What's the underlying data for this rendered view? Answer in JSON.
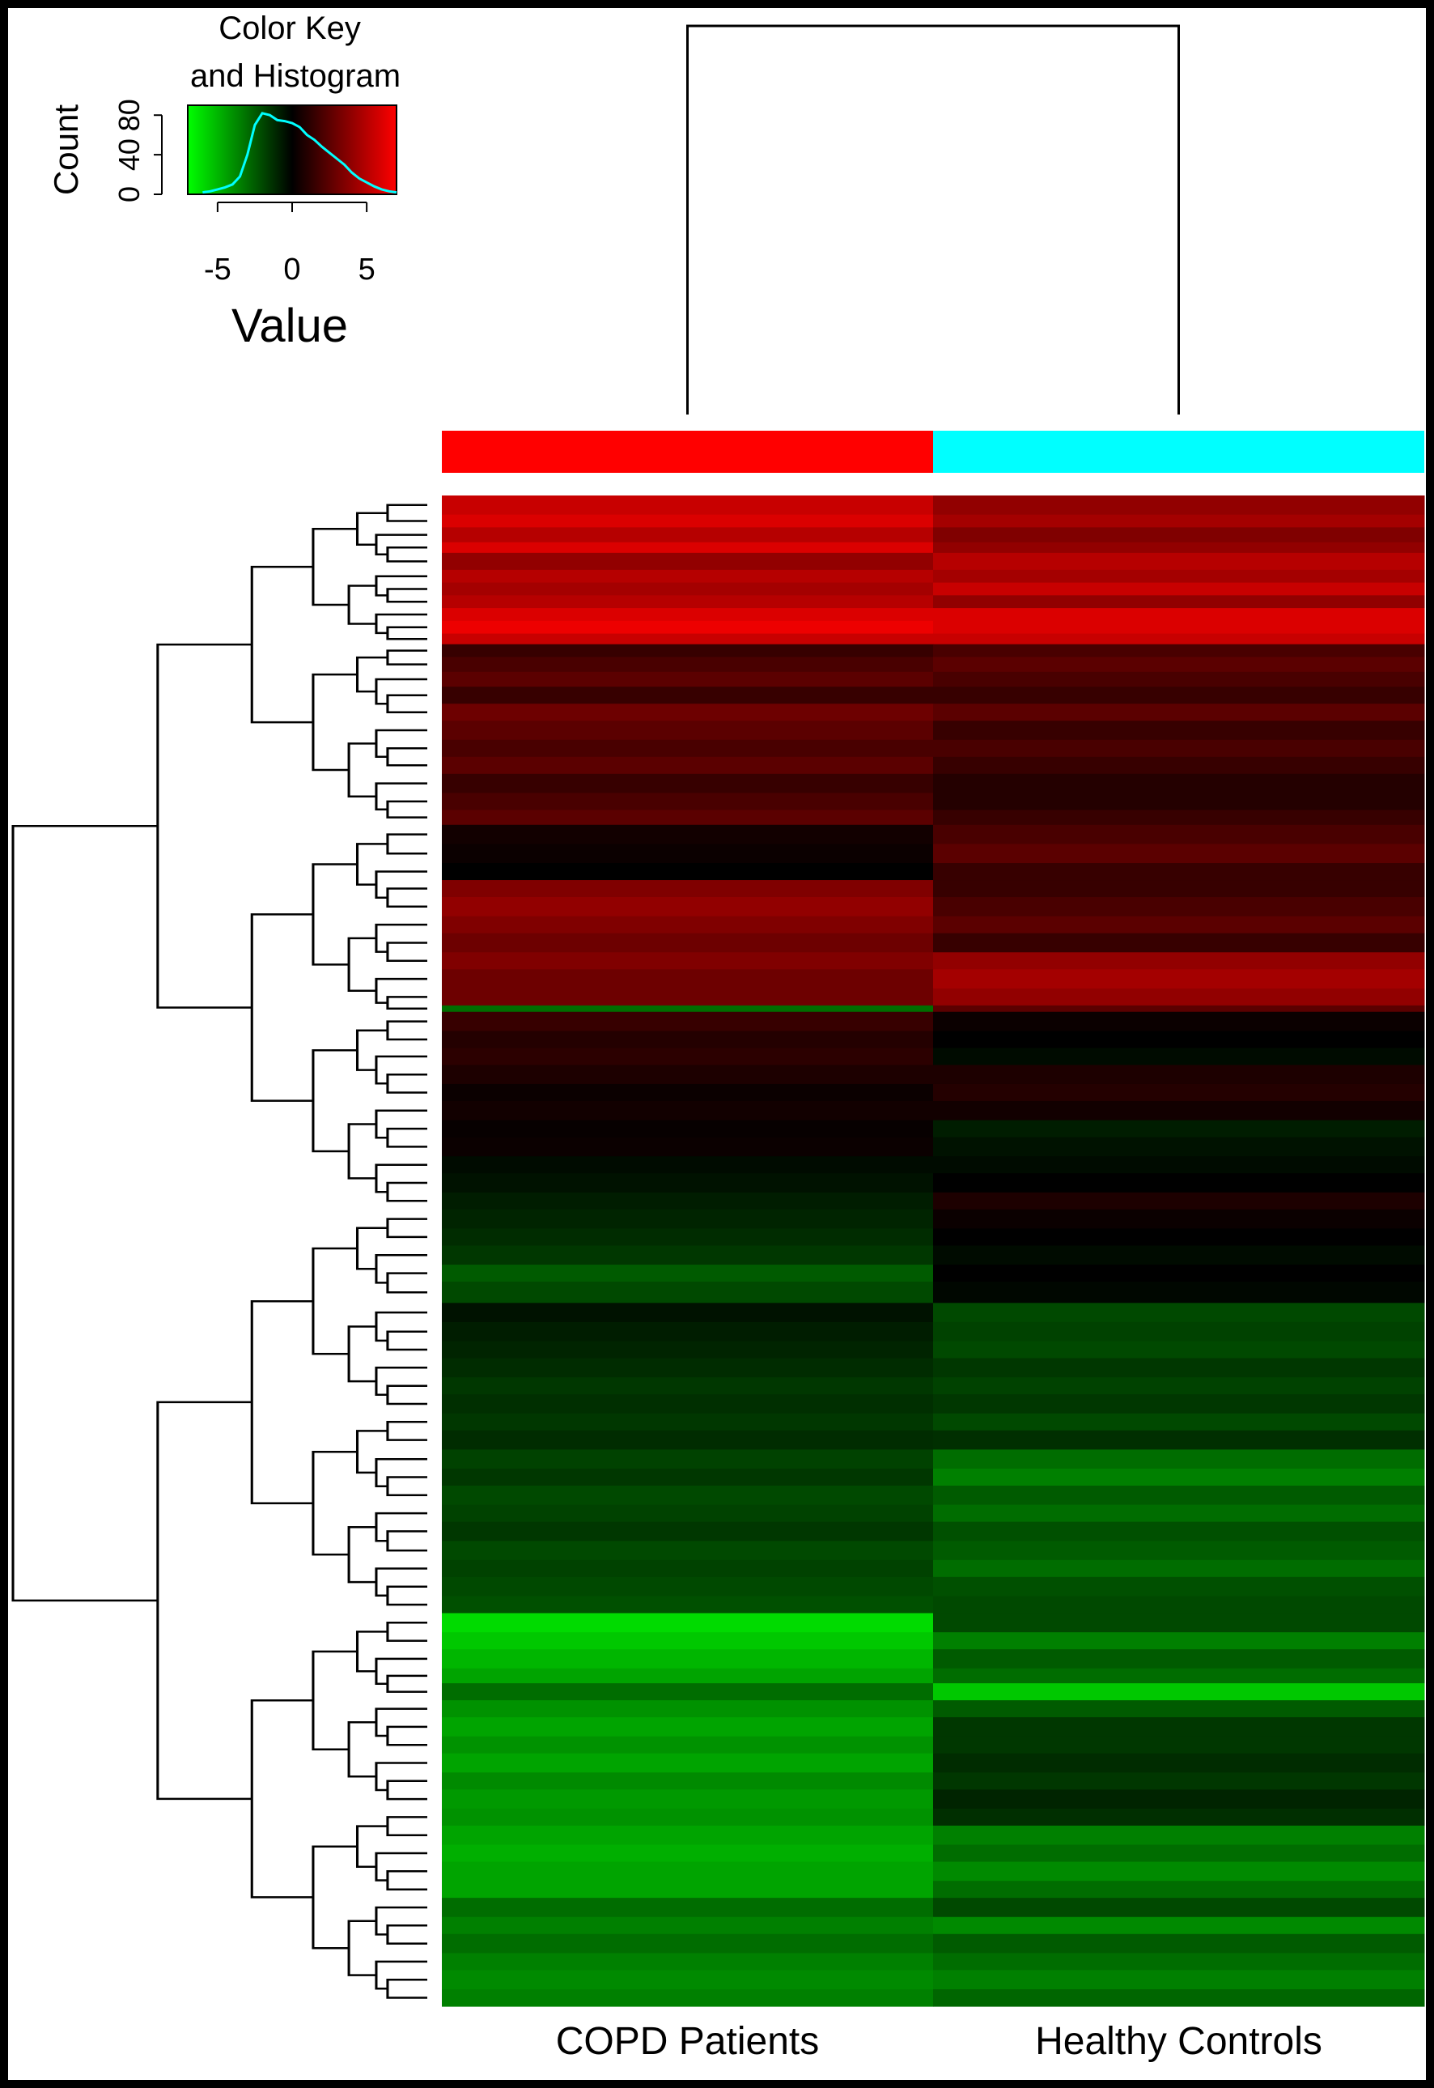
{
  "chart_data": {
    "type": "heatmap",
    "color_key": {
      "title_line1": "Color Key",
      "title_line2": "and Histogram",
      "ylabel": "Count",
      "xlabel": "Value",
      "y_ticks": [
        "0",
        "40",
        "80"
      ],
      "x_ticks": [
        "-5",
        "0",
        "5"
      ],
      "xlim": [
        -7,
        7
      ],
      "ylim": [
        0,
        90
      ],
      "colors": {
        "low": "#00ff00",
        "mid": "#000000",
        "high": "#ff0000",
        "histogram": "#00ffff"
      },
      "histogram": {
        "x": [
          -6.0,
          -5.5,
          -5.0,
          -4.5,
          -4.0,
          -3.5,
          -3.0,
          -2.5,
          -2.0,
          -1.5,
          -1.0,
          -0.5,
          0.0,
          0.5,
          1.0,
          1.5,
          2.0,
          2.5,
          3.0,
          3.5,
          4.0,
          4.5,
          5.0,
          5.5,
          6.0,
          6.5,
          7.0
        ],
        "counts": [
          2,
          3,
          5,
          7,
          10,
          18,
          40,
          70,
          82,
          80,
          75,
          74,
          72,
          68,
          60,
          55,
          48,
          42,
          36,
          30,
          22,
          16,
          12,
          8,
          5,
          3,
          2
        ]
      }
    },
    "column_groups": [
      {
        "label": "COPD Patients",
        "color": "#ff0000"
      },
      {
        "label": "Healthy Controls",
        "color": "#00ffff"
      }
    ],
    "rows": [
      {
        "span": 18,
        "v": [
          5.5,
          4.0
        ]
      },
      {
        "span": 12,
        "v": [
          6.0,
          4.5
        ]
      },
      {
        "span": 14,
        "v": [
          5.0,
          3.5
        ]
      },
      {
        "span": 10,
        "v": [
          6.0,
          4.0
        ]
      },
      {
        "span": 16,
        "v": [
          4.0,
          5.0
        ]
      },
      {
        "span": 12,
        "v": [
          5.0,
          4.5
        ]
      },
      {
        "span": 12,
        "v": [
          4.5,
          5.5
        ]
      },
      {
        "span": 12,
        "v": [
          5.0,
          4.0
        ]
      },
      {
        "span": 12,
        "v": [
          6.0,
          6.0
        ]
      },
      {
        "span": 12,
        "v": [
          6.5,
          6.0
        ]
      },
      {
        "span": 10,
        "v": [
          5.5,
          5.5
        ]
      },
      {
        "span": 12,
        "v": [
          1.5,
          2.0
        ]
      },
      {
        "span": 14,
        "v": [
          2.0,
          2.5
        ]
      },
      {
        "span": 14,
        "v": [
          2.5,
          2.0
        ]
      },
      {
        "span": 16,
        "v": [
          1.5,
          1.5
        ]
      },
      {
        "span": 16,
        "v": [
          3.0,
          2.5
        ]
      },
      {
        "span": 18,
        "v": [
          2.5,
          1.5
        ]
      },
      {
        "span": 16,
        "v": [
          2.0,
          2.0
        ]
      },
      {
        "span": 16,
        "v": [
          2.5,
          1.5
        ]
      },
      {
        "span": 18,
        "v": [
          1.5,
          1.0
        ]
      },
      {
        "span": 16,
        "v": [
          2.0,
          1.0
        ]
      },
      {
        "span": 14,
        "v": [
          2.5,
          1.5
        ]
      },
      {
        "span": 18,
        "v": [
          0.5,
          2.0
        ]
      },
      {
        "span": 18,
        "v": [
          0.3,
          2.5
        ]
      },
      {
        "span": 16,
        "v": [
          0.0,
          1.5
        ]
      },
      {
        "span": 16,
        "v": [
          3.5,
          1.5
        ]
      },
      {
        "span": 18,
        "v": [
          4.0,
          2.0
        ]
      },
      {
        "span": 16,
        "v": [
          3.5,
          2.5
        ]
      },
      {
        "span": 18,
        "v": [
          3.0,
          1.5
        ]
      },
      {
        "span": 16,
        "v": [
          3.5,
          4.0
        ]
      },
      {
        "span": 18,
        "v": [
          3.0,
          4.5
        ]
      },
      {
        "span": 16,
        "v": [
          3.0,
          4.0
        ]
      },
      {
        "span": 6,
        "v": [
          -3.0,
          2.5
        ]
      },
      {
        "span": 18,
        "v": [
          1.5,
          0.3
        ]
      },
      {
        "span": 16,
        "v": [
          1.0,
          0.0
        ]
      },
      {
        "span": 16,
        "v": [
          1.2,
          -0.3
        ]
      },
      {
        "span": 18,
        "v": [
          0.8,
          0.8
        ]
      },
      {
        "span": 16,
        "v": [
          0.3,
          1.0
        ]
      },
      {
        "span": 18,
        "v": [
          0.5,
          0.5
        ]
      },
      {
        "span": 16,
        "v": [
          0.2,
          -0.8
        ]
      },
      {
        "span": 18,
        "v": [
          0.3,
          -0.5
        ]
      },
      {
        "span": 16,
        "v": [
          -0.3,
          -0.3
        ]
      },
      {
        "span": 18,
        "v": [
          -0.5,
          0.0
        ]
      },
      {
        "span": 16,
        "v": [
          -0.8,
          0.8
        ]
      },
      {
        "span": 18,
        "v": [
          -1.0,
          0.3
        ]
      },
      {
        "span": 16,
        "v": [
          -1.2,
          0.0
        ]
      },
      {
        "span": 18,
        "v": [
          -1.5,
          -0.3
        ]
      },
      {
        "span": 16,
        "v": [
          -2.5,
          0.0
        ]
      },
      {
        "span": 20,
        "v": [
          -2.0,
          -0.2
        ]
      },
      {
        "span": 18,
        "v": [
          -0.5,
          -2.0
        ]
      },
      {
        "span": 18,
        "v": [
          -0.8,
          -1.8
        ]
      },
      {
        "span": 16,
        "v": [
          -1.0,
          -2.0
        ]
      },
      {
        "span": 18,
        "v": [
          -1.2,
          -1.5
        ]
      },
      {
        "span": 16,
        "v": [
          -1.5,
          -1.8
        ]
      },
      {
        "span": 18,
        "v": [
          -1.3,
          -1.5
        ]
      },
      {
        "span": 16,
        "v": [
          -1.5,
          -2.0
        ]
      },
      {
        "span": 18,
        "v": [
          -1.2,
          -1.3
        ]
      },
      {
        "span": 18,
        "v": [
          -1.8,
          -3.0
        ]
      },
      {
        "span": 16,
        "v": [
          -1.5,
          -3.5
        ]
      },
      {
        "span": 18,
        "v": [
          -2.0,
          -2.5
        ]
      },
      {
        "span": 16,
        "v": [
          -1.8,
          -3.0
        ]
      },
      {
        "span": 18,
        "v": [
          -1.5,
          -2.2
        ]
      },
      {
        "span": 18,
        "v": [
          -2.0,
          -2.5
        ]
      },
      {
        "span": 16,
        "v": [
          -1.8,
          -3.0
        ]
      },
      {
        "span": 18,
        "v": [
          -2.0,
          -2.2
        ]
      },
      {
        "span": 16,
        "v": [
          -2.2,
          -2.0
        ]
      },
      {
        "span": 18,
        "v": [
          -6.0,
          -2.0
        ]
      },
      {
        "span": 16,
        "v": [
          -5.5,
          -3.5
        ]
      },
      {
        "span": 18,
        "v": [
          -5.0,
          -2.5
        ]
      },
      {
        "span": 14,
        "v": [
          -4.5,
          -3.0
        ]
      },
      {
        "span": 16,
        "v": [
          -3.0,
          -5.5
        ]
      },
      {
        "span": 16,
        "v": [
          -4.0,
          -2.5
        ]
      },
      {
        "span": 18,
        "v": [
          -4.5,
          -1.5
        ]
      },
      {
        "span": 16,
        "v": [
          -4.0,
          -1.5
        ]
      },
      {
        "span": 18,
        "v": [
          -4.5,
          -1.2
        ]
      },
      {
        "span": 16,
        "v": [
          -3.8,
          -1.5
        ]
      },
      {
        "span": 18,
        "v": [
          -4.2,
          -1.0
        ]
      },
      {
        "span": 16,
        "v": [
          -4.0,
          -1.3
        ]
      },
      {
        "span": 18,
        "v": [
          -4.5,
          -3.5
        ]
      },
      {
        "span": 16,
        "v": [
          -4.8,
          -3.0
        ]
      },
      {
        "span": 18,
        "v": [
          -4.5,
          -3.8
        ]
      },
      {
        "span": 16,
        "v": [
          -4.5,
          -3.0
        ]
      },
      {
        "span": 18,
        "v": [
          -3.0,
          -2.0
        ]
      },
      {
        "span": 16,
        "v": [
          -3.5,
          -3.8
        ]
      },
      {
        "span": 18,
        "v": [
          -3.0,
          -2.5
        ]
      },
      {
        "span": 16,
        "v": [
          -3.5,
          -3.0
        ]
      },
      {
        "span": 18,
        "v": [
          -3.8,
          -3.5
        ]
      },
      {
        "span": 16,
        "v": [
          -3.5,
          -2.8
        ]
      }
    ]
  }
}
